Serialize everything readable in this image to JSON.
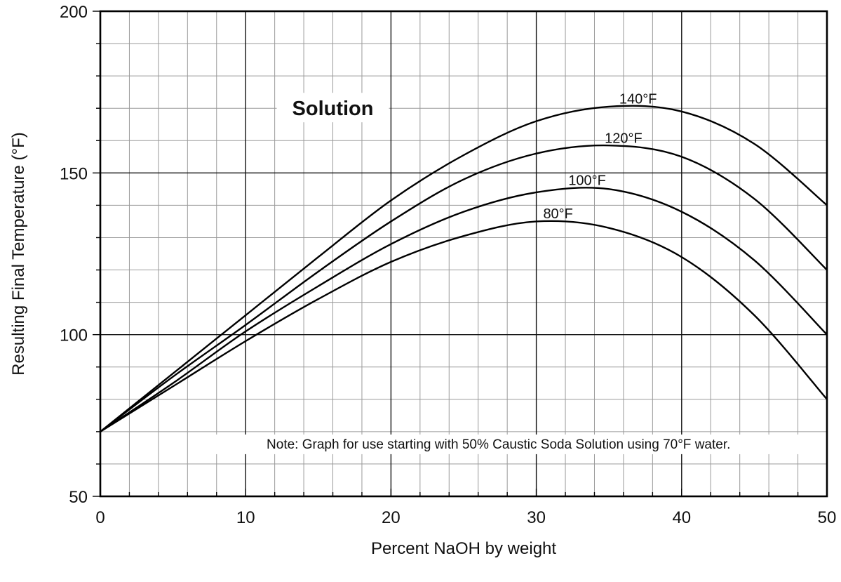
{
  "chart_data": {
    "type": "line",
    "title": "Solution",
    "xlabel": "Percent NaOH by weight",
    "ylabel": "Resulting Final Temperature (°F)",
    "xlim": [
      0,
      50
    ],
    "ylim": [
      50,
      200
    ],
    "x_major_ticks": [
      0,
      10,
      20,
      30,
      40,
      50
    ],
    "y_major_ticks": [
      50,
      100,
      150,
      200
    ],
    "x_minor_step": 2,
    "y_minor_step": 10,
    "grid": true,
    "note": "Note: Graph for use starting with 50% Caustic Soda Solution using 70°F water.",
    "x": [
      0,
      5,
      10,
      15,
      20,
      25,
      30,
      35,
      40,
      45,
      50
    ],
    "series": [
      {
        "name": "80°F",
        "values": [
          70,
          84,
          98,
          111,
          122.5,
          130.5,
          135,
          133,
          124,
          106,
          80
        ]
      },
      {
        "name": "100°F",
        "values": [
          70,
          85,
          101,
          115,
          128,
          138,
          144,
          145,
          138,
          123,
          100
        ]
      },
      {
        "name": "120°F",
        "values": [
          70,
          87,
          103,
          119.5,
          135,
          148,
          156,
          158.5,
          155,
          142,
          120
        ]
      },
      {
        "name": "140°F",
        "values": [
          70,
          88,
          106,
          124,
          141.5,
          155.5,
          166,
          170.5,
          169,
          159,
          140
        ]
      }
    ],
    "series_label_x": [
      31.5,
      33.5,
      36,
      37
    ]
  }
}
